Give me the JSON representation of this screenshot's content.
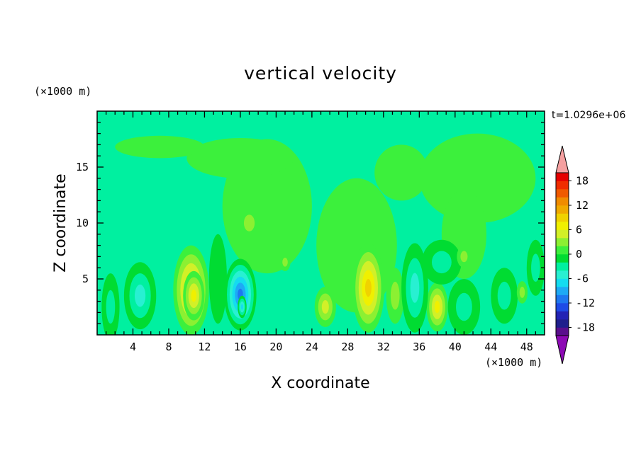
{
  "chart_data": {
    "type": "heatmap",
    "title": "vertical velocity",
    "xlabel": "X coordinate",
    "ylabel": "Z coordinate",
    "x_unit": "(×1000 m)",
    "y_unit": "(×1000 m)",
    "time_label": "t=1.0296e+06",
    "xlim": [
      0,
      50
    ],
    "ylim": [
      0,
      20
    ],
    "x_ticks": [
      4,
      8,
      12,
      16,
      20,
      24,
      28,
      32,
      36,
      40,
      44,
      48
    ],
    "y_ticks": [
      5,
      10,
      15
    ],
    "grid": false,
    "colorbar": {
      "levels": [
        -20,
        -18,
        -16,
        -14,
        -12,
        -10,
        -8,
        -6,
        -4,
        -2,
        0,
        2,
        4,
        6,
        8,
        10,
        12,
        14,
        16,
        18,
        20
      ],
      "tick_labels": [
        18,
        12,
        6,
        0,
        -6,
        -12,
        -18
      ],
      "colors": [
        "#5a0f8c",
        "#1f1f8c",
        "#2323b4",
        "#1e4be6",
        "#1e78f0",
        "#1eaaf5",
        "#14dcf0",
        "#28f0d2",
        "#00f0a0",
        "#00dc32",
        "#3cf03c",
        "#8cf032",
        "#d2f028",
        "#f0f000",
        "#f0d200",
        "#f0aa00",
        "#f08c00",
        "#f05a00",
        "#f02d00",
        "#e60000"
      ],
      "under_color": "#8c0ab4",
      "over_color": "#f5a0a0"
    },
    "features": [
      {
        "x": 19,
        "z": 11.5,
        "value": 1,
        "rx": 5,
        "rz": 6
      },
      {
        "x": 16,
        "z": 15.8,
        "value": 1,
        "rx": 6,
        "rz": 1.8
      },
      {
        "x": 7,
        "z": 16.8,
        "value": 1,
        "rx": 5,
        "rz": 1.0
      },
      {
        "x": 29,
        "z": 8,
        "value": 1,
        "rx": 4.5,
        "rz": 6
      },
      {
        "x": 34,
        "z": 14.5,
        "value": 1,
        "rx": 3,
        "rz": 2.5
      },
      {
        "x": 42.5,
        "z": 14,
        "value": 1,
        "rx": 6.5,
        "rz": 4
      },
      {
        "x": 41,
        "z": 9,
        "value": 1,
        "rx": 2.5,
        "rz": 4
      },
      {
        "x": 10.5,
        "z": 4,
        "value": 10,
        "rx": 2.0,
        "rz": 4.0
      },
      {
        "x": 10.8,
        "z": 3.5,
        "value": 7,
        "rx": 1.2,
        "rz": 2.2
      },
      {
        "x": 16,
        "z": 3.6,
        "value": -11,
        "rx": 1.8,
        "rz": 3.2
      },
      {
        "x": 16.2,
        "z": 2.5,
        "value": -8,
        "rx": 0.5,
        "rz": 1.0
      },
      {
        "x": 4.8,
        "z": 3.5,
        "value": -5,
        "rx": 1.8,
        "rz": 3
      },
      {
        "x": 1.5,
        "z": 2.5,
        "value": -3,
        "rx": 1.0,
        "rz": 3
      },
      {
        "x": 30.3,
        "z": 4.2,
        "value": 9,
        "rx": 1.8,
        "rz": 4
      },
      {
        "x": 25.5,
        "z": 2.5,
        "value": 6,
        "rx": 1.2,
        "rz": 1.8
      },
      {
        "x": 38,
        "z": 2.5,
        "value": 7,
        "rx": 1.2,
        "rz": 2.2
      },
      {
        "x": 33.3,
        "z": 3.5,
        "value": 4,
        "rx": 1.0,
        "rz": 2.5
      },
      {
        "x": 35.5,
        "z": 4.2,
        "value": -6,
        "rx": 1.5,
        "rz": 4
      },
      {
        "x": 38.5,
        "z": 6.5,
        "value": -3,
        "rx": 2.2,
        "rz": 2.0
      },
      {
        "x": 41,
        "z": 2.5,
        "value": -4,
        "rx": 1.8,
        "rz": 2.5
      },
      {
        "x": 49,
        "z": 6,
        "value": -3,
        "rx": 1.0,
        "rz": 2.5
      },
      {
        "x": 17,
        "z": 10,
        "value": 4,
        "rx": 1.2,
        "rz": 1.5
      },
      {
        "x": 21,
        "z": 6.5,
        "value": 3,
        "rx": 0.6,
        "rz": 0.8
      },
      {
        "x": 41,
        "z": 7,
        "value": 4,
        "rx": 0.8,
        "rz": 1.0
      },
      {
        "x": 45.5,
        "z": 3.5,
        "value": -4,
        "rx": 1.5,
        "rz": 2.5
      },
      {
        "x": 47.5,
        "z": 3.8,
        "value": 3,
        "rx": 0.6,
        "rz": 1.0
      },
      {
        "x": 13.5,
        "z": 5,
        "value": -2,
        "rx": 1.0,
        "rz": 4
      }
    ]
  }
}
